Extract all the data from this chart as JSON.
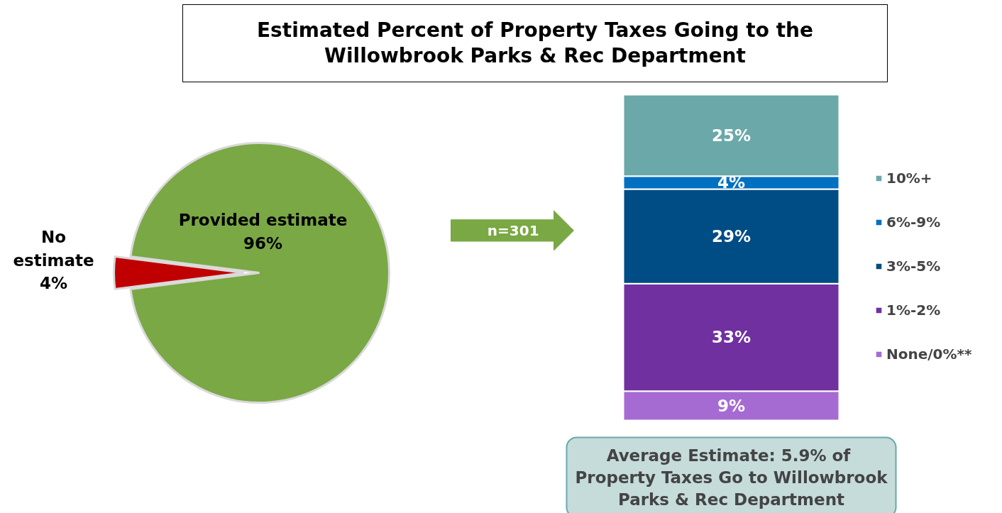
{
  "chart_data": [
    {
      "type": "pie",
      "title": "Estimated Percent of Property Taxes Going to the Willowbrook Parks & Rec Department",
      "categories": [
        "Provided estimate",
        "No estimate"
      ],
      "values": [
        96,
        4
      ],
      "colors": [
        "#7aa844",
        "#c00000"
      ],
      "value_labels": [
        "96%",
        "4%"
      ]
    },
    {
      "type": "bar",
      "stacked": true,
      "categories": [
        null
      ],
      "legend": "right",
      "series": [
        {
          "name": "None/0%**",
          "color": "#a66bd3",
          "values": [
            9
          ],
          "value_labels": [
            "9%"
          ]
        },
        {
          "name": "1%-2%",
          "color": "#7030a0",
          "values": [
            33
          ],
          "value_labels": [
            "33%"
          ]
        },
        {
          "name": "3%-5%",
          "color": "#004c85",
          "values": [
            29
          ],
          "value_labels": [
            "29%"
          ]
        },
        {
          "name": "6%-9%",
          "color": "#0070c0",
          "values": [
            4
          ],
          "value_labels": [
            "4%"
          ]
        },
        {
          "name": "10%+",
          "color": "#6ba8a9",
          "values": [
            25
          ],
          "value_labels": [
            "25%"
          ]
        }
      ],
      "annotations": [
        "n=301",
        "Average Estimate:  5.9% of\nProperty Taxes Go to Willowbrook\nParks & Rec Department"
      ]
    }
  ]
}
